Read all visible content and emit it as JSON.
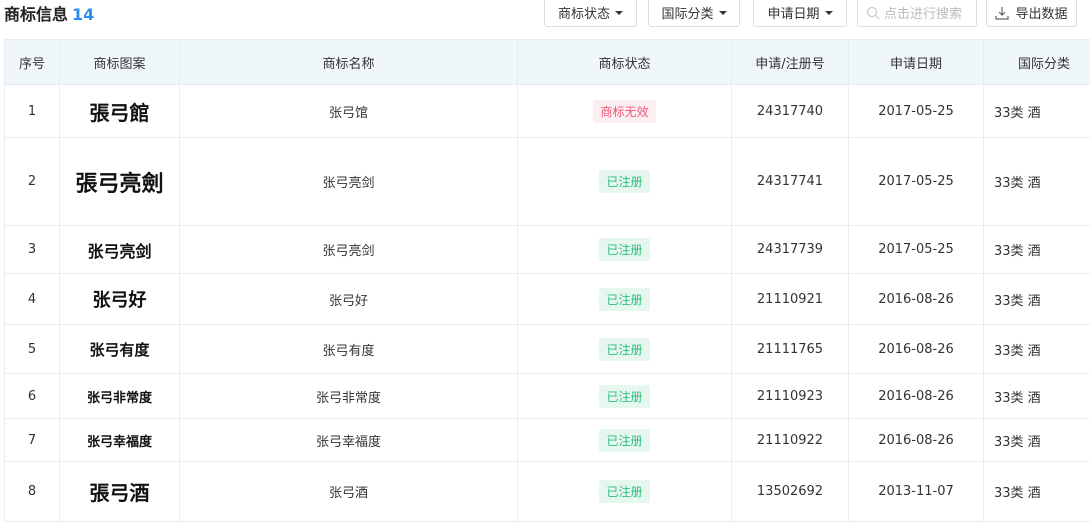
{
  "header": {
    "title": "商标信息",
    "count": "14"
  },
  "toolbar": {
    "status": "商标状态",
    "class": "国际分类",
    "date": "申请日期",
    "search_placeholder": "点击进行搜索",
    "export": "导出数据"
  },
  "colors": {
    "accent": "#2f8ff0",
    "registered_bg": "#e6f7ef",
    "registered_fg": "#2bbf7a",
    "invalid_bg": "#fdeef1",
    "invalid_fg": "#f0587a"
  },
  "columns": [
    "序号",
    "商标图案",
    "商标名称",
    "商标状态",
    "申请/注册号",
    "申请日期",
    "国际分类"
  ],
  "rows": [
    {
      "no": "1",
      "logo": "張弓館",
      "name": "张弓馆",
      "status": "商标无效",
      "status_type": "invalid",
      "reg": "24317740",
      "date": "2017-05-25",
      "cls": "33类 酒"
    },
    {
      "no": "2",
      "logo": "張弓亮劍",
      "name": "张弓亮剑",
      "status": "已注册",
      "status_type": "registered",
      "reg": "24317741",
      "date": "2017-05-25",
      "cls": "33类 酒"
    },
    {
      "no": "3",
      "logo": "张弓亮剑",
      "name": "张弓亮剑",
      "status": "已注册",
      "status_type": "registered",
      "reg": "24317739",
      "date": "2017-05-25",
      "cls": "33类 酒"
    },
    {
      "no": "4",
      "logo": "张弓好",
      "name": "张弓好",
      "status": "已注册",
      "status_type": "registered",
      "reg": "21110921",
      "date": "2016-08-26",
      "cls": "33类 酒"
    },
    {
      "no": "5",
      "logo": "张弓有度",
      "name": "张弓有度",
      "status": "已注册",
      "status_type": "registered",
      "reg": "21111765",
      "date": "2016-08-26",
      "cls": "33类 酒"
    },
    {
      "no": "6",
      "logo": "张弓非常度",
      "name": "张弓非常度",
      "status": "已注册",
      "status_type": "registered",
      "reg": "21110923",
      "date": "2016-08-26",
      "cls": "33类 酒"
    },
    {
      "no": "7",
      "logo": "张弓幸福度",
      "name": "张弓幸福度",
      "status": "已注册",
      "status_type": "registered",
      "reg": "21110922",
      "date": "2016-08-26",
      "cls": "33类 酒"
    },
    {
      "no": "8",
      "logo": "張弓酒",
      "name": "张弓酒",
      "status": "已注册",
      "status_type": "registered",
      "reg": "13502692",
      "date": "2013-11-07",
      "cls": "33类 酒"
    }
  ]
}
